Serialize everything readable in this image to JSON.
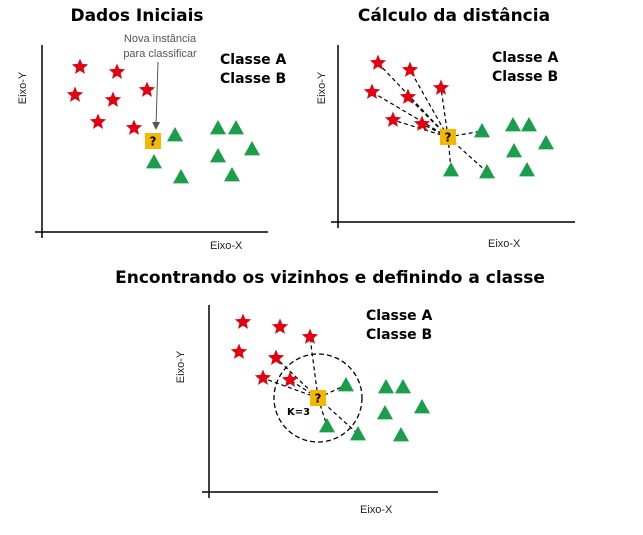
{
  "colors": {
    "classA": "#e3000f",
    "classB": "#1a9e4a",
    "query": "#f5b800",
    "axis": "#000000"
  },
  "panel1": {
    "title": "Dados Iniciais",
    "xlabel": "Eixo-X",
    "ylabel": "Eixo-Y",
    "legend": {
      "a": "Classe A",
      "b": "Classe B"
    },
    "annotation_line1": "Nova instância",
    "annotation_line2": "para classificar",
    "query_symbol": "?"
  },
  "panel2": {
    "title": "Cálculo da distância",
    "xlabel": "Eixo-X",
    "ylabel": "Eixo-Y",
    "legend": {
      "a": "Classe A",
      "b": "Classe B"
    },
    "query_symbol": "?"
  },
  "panel3": {
    "title": "Encontrando os vizinhos e definindo a classe",
    "xlabel": "Eixo-X",
    "ylabel": "Eixo-Y",
    "legend": {
      "a": "Classe A",
      "b": "Classe B"
    },
    "k_label": "K=3",
    "query_symbol": "?"
  }
}
